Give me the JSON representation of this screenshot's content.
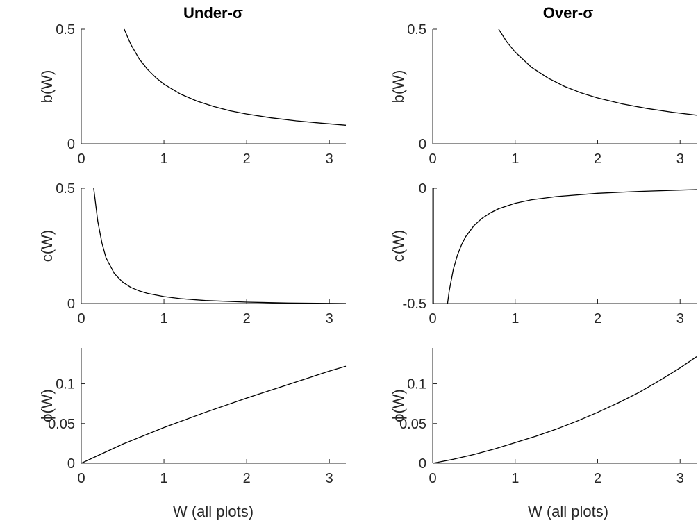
{
  "figure": {
    "column_titles": [
      "Under-σ",
      "Over-σ"
    ],
    "xlabel": "W (all plots)"
  },
  "chart_data": [
    {
      "id": "under_b",
      "type": "line",
      "col": 0,
      "row": 0,
      "ylabel": "b(W)",
      "xlim": [
        0,
        3.2
      ],
      "ylim": [
        0,
        0.5
      ],
      "xticks": [
        0,
        1,
        2,
        3
      ],
      "yticks": [
        0,
        0.5
      ],
      "ytick_labels": [
        "0",
        "0.5"
      ],
      "color": "#000000",
      "x": [
        0.52,
        0.6,
        0.7,
        0.8,
        0.9,
        1.0,
        1.2,
        1.4,
        1.6,
        1.8,
        2.0,
        2.3,
        2.6,
        2.9,
        3.2
      ],
      "y": [
        0.5,
        0.433,
        0.371,
        0.325,
        0.289,
        0.26,
        0.217,
        0.186,
        0.163,
        0.144,
        0.13,
        0.113,
        0.1,
        0.09,
        0.081
      ]
    },
    {
      "id": "over_b",
      "type": "line",
      "col": 1,
      "row": 0,
      "ylabel": "b(W)",
      "xlim": [
        0,
        3.2
      ],
      "ylim": [
        0,
        0.5
      ],
      "xticks": [
        0,
        1,
        2,
        3
      ],
      "yticks": [
        0,
        0.5
      ],
      "ytick_labels": [
        "0",
        "0.5"
      ],
      "color": "#000000",
      "x": [
        0.8,
        0.9,
        1.0,
        1.2,
        1.4,
        1.6,
        1.8,
        2.0,
        2.3,
        2.6,
        2.9,
        3.2
      ],
      "y": [
        0.5,
        0.444,
        0.4,
        0.333,
        0.286,
        0.25,
        0.222,
        0.2,
        0.174,
        0.154,
        0.138,
        0.125
      ]
    },
    {
      "id": "under_c",
      "type": "line",
      "col": 0,
      "row": 1,
      "ylabel": "c(W)",
      "xlim": [
        0,
        3.2
      ],
      "ylim": [
        0,
        0.5
      ],
      "xticks": [
        0,
        1,
        2,
        3
      ],
      "yticks": [
        0,
        0.5
      ],
      "ytick_labels": [
        "0",
        "0.5"
      ],
      "color": "#000000",
      "x": [
        0.15,
        0.2,
        0.25,
        0.3,
        0.4,
        0.5,
        0.6,
        0.7,
        0.8,
        1.0,
        1.2,
        1.5,
        2.0,
        2.5,
        3.2
      ],
      "y": [
        0.5,
        0.356,
        0.262,
        0.198,
        0.13,
        0.093,
        0.07,
        0.055,
        0.044,
        0.03,
        0.021,
        0.013,
        0.006,
        0.002,
        0.0
      ]
    },
    {
      "id": "over_c",
      "type": "line",
      "col": 1,
      "row": 1,
      "ylabel": "c(W)",
      "xlim": [
        0,
        3.2
      ],
      "ylim": [
        -0.5,
        0
      ],
      "xticks": [
        0,
        1,
        2,
        3
      ],
      "yticks": [
        -0.5,
        0
      ],
      "ytick_labels": [
        "-0.5",
        "0"
      ],
      "color": "#000000",
      "x": [
        0.18,
        0.2,
        0.25,
        0.3,
        0.35,
        0.4,
        0.5,
        0.6,
        0.7,
        0.8,
        1.0,
        1.2,
        1.5,
        2.0,
        2.5,
        3.0,
        3.2
      ],
      "y": [
        -0.5,
        -0.445,
        -0.352,
        -0.29,
        -0.245,
        -0.21,
        -0.162,
        -0.13,
        -0.107,
        -0.089,
        -0.065,
        -0.05,
        -0.036,
        -0.022,
        -0.014,
        -0.008,
        -0.006
      ]
    },
    {
      "id": "under_phi",
      "type": "line",
      "col": 0,
      "row": 2,
      "ylabel": "ϕ(W)",
      "xlim": [
        0,
        3.2
      ],
      "ylim": [
        0,
        0.145
      ],
      "xticks": [
        0,
        1,
        2,
        3
      ],
      "yticks": [
        0,
        0.05,
        0.1
      ],
      "ytick_labels": [
        "0",
        "0.05",
        "0.1"
      ],
      "color": "#000000",
      "x": [
        0.0,
        0.5,
        1.0,
        1.5,
        2.0,
        2.5,
        3.0,
        3.2
      ],
      "y": [
        0.0,
        0.024,
        0.045,
        0.064,
        0.082,
        0.099,
        0.116,
        0.122
      ]
    },
    {
      "id": "over_phi",
      "type": "line",
      "col": 1,
      "row": 2,
      "ylabel": "ϕ(W)",
      "xlim": [
        0,
        3.2
      ],
      "ylim": [
        0,
        0.145
      ],
      "xticks": [
        0,
        1,
        2,
        3
      ],
      "yticks": [
        0,
        0.05,
        0.1
      ],
      "ytick_labels": [
        "0",
        "0.05",
        "0.1"
      ],
      "color": "#000000",
      "x": [
        0.0,
        0.25,
        0.5,
        0.75,
        1.0,
        1.25,
        1.5,
        1.75,
        2.0,
        2.25,
        2.5,
        2.75,
        3.0,
        3.2
      ],
      "y": [
        0.0,
        0.005,
        0.011,
        0.018,
        0.026,
        0.034,
        0.043,
        0.053,
        0.064,
        0.076,
        0.089,
        0.104,
        0.12,
        0.134
      ]
    }
  ]
}
